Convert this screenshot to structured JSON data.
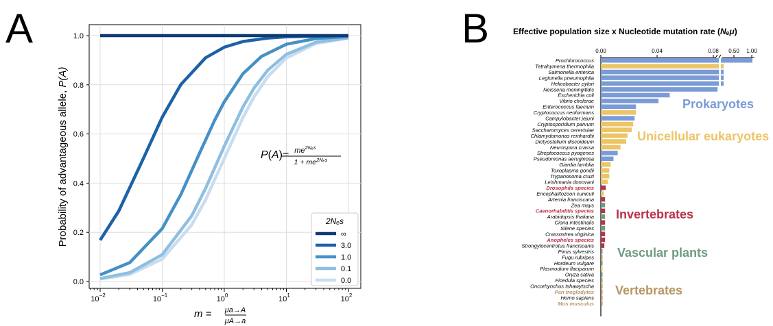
{
  "panel_a": {
    "letter": "A",
    "formula": {
      "lhs": "P(A)=",
      "numerator": "me",
      "numerator_exp": "2Nₑs",
      "denominator": "1 + me",
      "denominator_exp": "2Nₑs"
    },
    "ylabel_main": "Probability of advantageous allele, ",
    "ylabel_var": "P(A)",
    "xlabel_var": "m = ",
    "xlabel_num": "μa→A",
    "xlabel_den": "μA→a",
    "legend_title": "2Nₑs",
    "y_ticks": [
      "0.0",
      "0.2",
      "0.4",
      "0.6",
      "0.8",
      "1.0"
    ],
    "x_tick_base": "10",
    "x_tick_exps": [
      "−2",
      "−1",
      "0",
      "1",
      "2"
    ]
  },
  "panel_b": {
    "letter": "B",
    "title_main": "Effective population size x Nucleotide mutation rate (",
    "title_var": "Nₑμ",
    "title_close": ")",
    "axis_ticks_left": [
      "0.00",
      "0.04",
      "0.08"
    ],
    "axis_ticks_right": [
      "0.50",
      "1.00"
    ],
    "group_labels": [
      {
        "text": "Prokaryotes",
        "color": "#7b9bd6"
      },
      {
        "text": "Unicellular eukaryotes",
        "color": "#ecc566"
      },
      {
        "text": "Invertebrates",
        "color": "#b8324a"
      },
      {
        "text": "Vascular plants",
        "color": "#6e9b82"
      },
      {
        "text": "Vertebrates",
        "color": "#b89766"
      }
    ]
  },
  "colors": {
    "prokaryote": "#7b9bd6",
    "unicellular": "#ecc566",
    "invertebrate": "#b8324a",
    "plant": "#6e9b82",
    "vertebrate": "#b89766"
  },
  "chart_data": [
    {
      "type": "line",
      "xscale": "log",
      "xlim": [
        0.01,
        100
      ],
      "ylim": [
        0,
        1.0
      ],
      "grid": true,
      "legend_placement": "bottom-right",
      "series": [
        {
          "name": "∞",
          "color": "#0e3a75",
          "x": [
            0.01,
            0.03,
            0.1,
            0.3,
            1,
            3,
            10,
            30,
            100
          ],
          "y": [
            1.0,
            1.0,
            1.0,
            1.0,
            1.0,
            1.0,
            1.0,
            1.0,
            1.0
          ]
        },
        {
          "name": "3.0",
          "color": "#1d61a8",
          "x": [
            0.01,
            0.02,
            0.05,
            0.1,
            0.2,
            0.5,
            1,
            2,
            5,
            10,
            100
          ],
          "y": [
            0.168,
            0.287,
            0.502,
            0.668,
            0.801,
            0.91,
            0.953,
            0.976,
            0.99,
            0.995,
            1.0
          ]
        },
        {
          "name": "1.0",
          "color": "#4591c6",
          "x": [
            0.01,
            0.03,
            0.1,
            0.2,
            0.4,
            0.7,
            1,
            2,
            4,
            10,
            30,
            100
          ],
          "y": [
            0.027,
            0.077,
            0.215,
            0.354,
            0.522,
            0.656,
            0.731,
            0.845,
            0.916,
            0.965,
            0.988,
            0.996
          ]
        },
        {
          "name": "0.1",
          "color": "#8fbfe0",
          "x": [
            0.01,
            0.03,
            0.1,
            0.3,
            0.5,
            1,
            2,
            3,
            5,
            10,
            30,
            100
          ],
          "y": [
            0.012,
            0.036,
            0.109,
            0.268,
            0.379,
            0.55,
            0.71,
            0.786,
            0.859,
            0.924,
            0.973,
            0.991
          ]
        },
        {
          "name": "0.0",
          "color": "#c9ddf1",
          "x": [
            0.01,
            0.03,
            0.1,
            0.3,
            0.5,
            1,
            2,
            3,
            5,
            10,
            30,
            100
          ],
          "y": [
            0.01,
            0.029,
            0.091,
            0.231,
            0.333,
            0.5,
            0.667,
            0.75,
            0.833,
            0.909,
            0.968,
            0.99
          ]
        }
      ]
    },
    {
      "type": "bar",
      "orientation": "horizontal",
      "axis_break": [
        0.09,
        0.5
      ],
      "xlim": [
        0,
        1.0
      ],
      "groups": [
        {
          "name": "Prokaryotes",
          "color_key": "prokaryote"
        },
        {
          "name": "Unicellular eukaryotes",
          "color_key": "unicellular"
        },
        {
          "name": "Invertebrates",
          "color_key": "invertebrate"
        },
        {
          "name": "Vascular plants",
          "color_key": "plant"
        },
        {
          "name": "Vertebrates",
          "color_key": "vertebrate"
        }
      ],
      "bars": [
        {
          "label": "Prochlorococcus",
          "value": 1.0,
          "color_key": "prokaryote"
        },
        {
          "label": "Tetrahymena thermophila",
          "value": 0.26,
          "color_key": "unicellular"
        },
        {
          "label": "Salmonella enterica",
          "value": 0.2,
          "color_key": "prokaryote"
        },
        {
          "label": "Legionella pneumophila",
          "value": 0.17,
          "color_key": "prokaryote"
        },
        {
          "label": "Helicobacter pylori",
          "value": 0.13,
          "color_key": "prokaryote"
        },
        {
          "label": "Neisseria meningitidis",
          "value": 0.083,
          "color_key": "prokaryote"
        },
        {
          "label": "Escherichia coli",
          "value": 0.049,
          "color_key": "prokaryote"
        },
        {
          "label": "Vibrio cholerae",
          "value": 0.041,
          "color_key": "prokaryote"
        },
        {
          "label": "Enterococcus faecium",
          "value": 0.025,
          "color_key": "prokaryote"
        },
        {
          "label": "Cryptococcus neoformans",
          "value": 0.025,
          "color_key": "unicellular"
        },
        {
          "label": "Campylobacter jejuni",
          "value": 0.024,
          "color_key": "prokaryote"
        },
        {
          "label": "Cryptosporidium parvum",
          "value": 0.023,
          "color_key": "unicellular"
        },
        {
          "label": "Saccharomyces cerevisiae",
          "value": 0.022,
          "color_key": "unicellular"
        },
        {
          "label": "Chlamydomonas reinhardtii",
          "value": 0.019,
          "color_key": "unicellular"
        },
        {
          "label": "Dictyostelium discoideum",
          "value": 0.018,
          "color_key": "unicellular"
        },
        {
          "label": "Neurospora crassa",
          "value": 0.014,
          "color_key": "unicellular"
        },
        {
          "label": "Streptococcus pyogenes",
          "value": 0.012,
          "color_key": "prokaryote"
        },
        {
          "label": "Pseudomonas aeruginosa",
          "value": 0.009,
          "color_key": "prokaryote"
        },
        {
          "label": "Giardia lamblia",
          "value": 0.007,
          "color_key": "unicellular"
        },
        {
          "label": "Toxoplasma gondii",
          "value": 0.006,
          "color_key": "unicellular"
        },
        {
          "label": "Trypanosoma cruzi",
          "value": 0.006,
          "color_key": "unicellular"
        },
        {
          "label": "Leishmania donovani",
          "value": 0.005,
          "color_key": "unicellular"
        },
        {
          "label": "Drosophila species",
          "value": 0.0035,
          "color_key": "invertebrate",
          "label_style": "bold-red"
        },
        {
          "label": "Encephalitozoon cuniculi",
          "value": 0.002,
          "color_key": "unicellular"
        },
        {
          "label": "Artemia franciscana",
          "value": 0.003,
          "color_key": "invertebrate"
        },
        {
          "label": "Zea mays",
          "value": 0.003,
          "color_key": "plant"
        },
        {
          "label": "Caenorhabditis species",
          "value": 0.003,
          "color_key": "invertebrate",
          "label_style": "bold-red"
        },
        {
          "label": "Arabidopsis thaliana",
          "value": 0.003,
          "color_key": "plant"
        },
        {
          "label": "Ciona intestinalis",
          "value": 0.003,
          "color_key": "invertebrate"
        },
        {
          "label": "Silene species",
          "value": 0.003,
          "color_key": "plant"
        },
        {
          "label": "Crassostrea virginica",
          "value": 0.003,
          "color_key": "invertebrate"
        },
        {
          "label": "Anopheles species",
          "value": 0.003,
          "color_key": "invertebrate",
          "label_style": "bold-red"
        },
        {
          "label": "Strongylocentrotus franciscanis",
          "value": 0.0025,
          "color_key": "invertebrate"
        },
        {
          "label": "Pinus sylvestris",
          "value": 0.0006,
          "color_key": "plant"
        },
        {
          "label": "Fugu rubripes",
          "value": 0.0012,
          "color_key": "vertebrate"
        },
        {
          "label": "Hordeum vulgare",
          "value": 0.001,
          "color_key": "plant"
        },
        {
          "label": "Plasmodium flaciparum",
          "value": 0.0008,
          "color_key": "unicellular"
        },
        {
          "label": "Oryza sativa",
          "value": 0.0005,
          "color_key": "plant"
        },
        {
          "label": "Ficedula species",
          "value": 0.0006,
          "color_key": "vertebrate"
        },
        {
          "label": "Oncorhynchus tshawytscha",
          "value": 0.0004,
          "color_key": "vertebrate"
        },
        {
          "label": "Pan troglodytes",
          "value": 0.0002,
          "color_key": "vertebrate",
          "label_style": "bold-tan"
        },
        {
          "label": "Homo sapiens",
          "value": 0.0002,
          "color_key": "vertebrate"
        },
        {
          "label": "Mus musculus",
          "value": 0.0003,
          "color_key": "vertebrate",
          "label_style": "bold-tan"
        }
      ]
    }
  ]
}
